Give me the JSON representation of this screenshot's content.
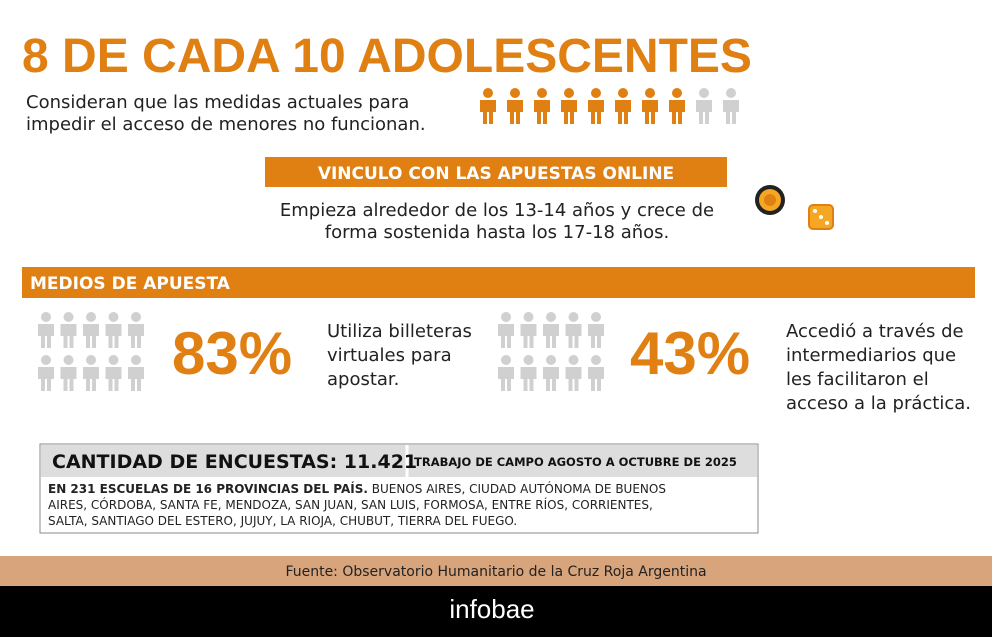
{
  "header": {
    "title": "8 DE CADA 10 ADOLESCENTES",
    "subtitle": [
      "Consideran que las medidas actuales para",
      "impedir el acceso de menores no funcionan."
    ]
  },
  "online": {
    "heading": "VINCULO CON LAS APUESTAS ONLINE",
    "text": [
      "Empieza alrededor de los 13-14 años y crece de",
      "forma sostenida hasta los 17-18 años."
    ]
  },
  "medios": {
    "heading": "MEDIOS DE APUESTA",
    "stats": [
      {
        "value": 83,
        "label": "83%",
        "text": [
          "Utiliza billeteras",
          "virtuales para",
          "apostar."
        ]
      },
      {
        "value": 43,
        "label": "43%",
        "text": [
          "Accedió a través de",
          "intermediarios que",
          "les facilitaron el",
          "acceso a la práctica."
        ]
      }
    ]
  },
  "survey": {
    "count_label": "CANTIDAD DE ENCUESTAS: 11.421",
    "fieldwork": "TRABAJO DE CAMPO AGOSTO A OCTUBRE DE 2025",
    "schools_lead": "EN 231 ESCUELAS DE 16 PROVINCIAS DEL PAÍS.",
    "provinces": [
      "BUENOS AIRES, CIUDAD AUTÓNOMA DE BUENOS",
      "AIRES, CÓRDOBA, SANTA FE, MENDOZA, SAN JUAN, SAN LUIS, FORMOSA, ENTRE RÍOS, CORRIENTES,",
      "SALTA, SANTIAGO DEL ESTERO, JUJUY, LA RIOJA, CHUBUT, TIERRA DEL FUEGO."
    ]
  },
  "footer": {
    "source": "Fuente: Observatorio Humanitario de la Cruz Roja Argentina",
    "brand": "infobae"
  }
}
